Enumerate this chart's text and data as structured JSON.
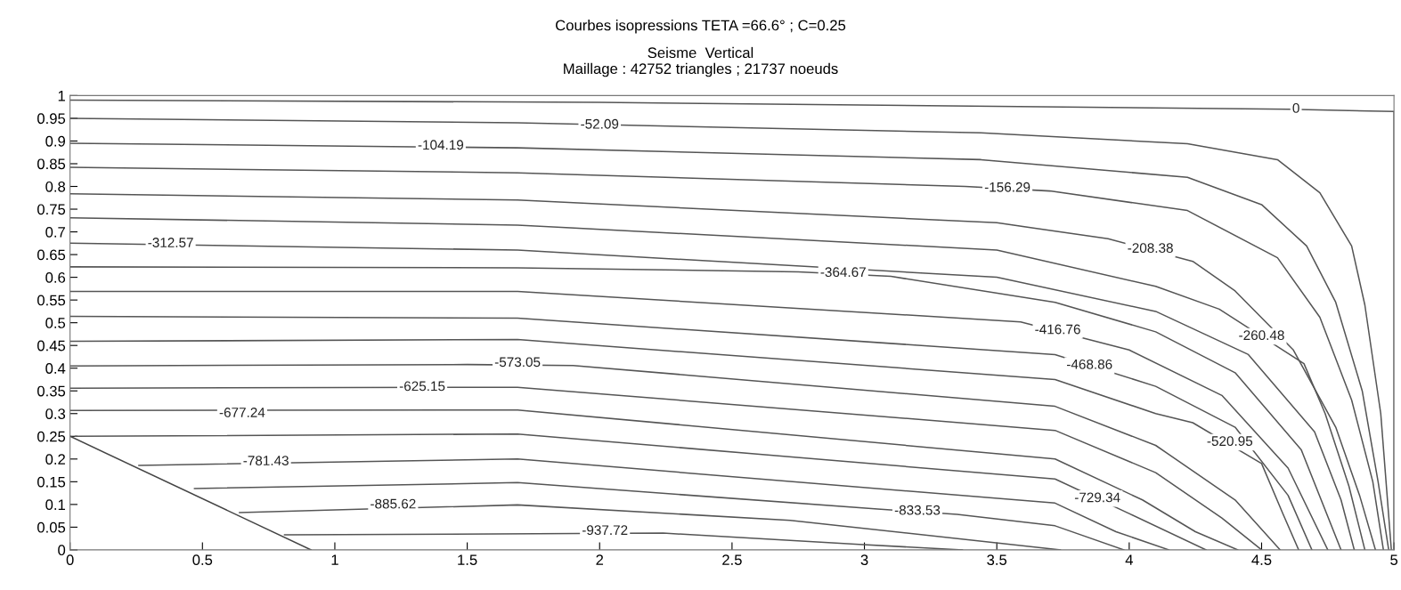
{
  "chart_data": {
    "type": "line",
    "title": "Courbes isopressions TETA =66.6° ; C=0.25",
    "subtitle": "Seisme  Vertical\nMaillage : 42752 triangles ; 21737 noeuds",
    "xlim": [
      0,
      5
    ],
    "ylim": [
      0,
      1
    ],
    "xticks": [
      0,
      0.5,
      1,
      1.5,
      2,
      2.5,
      3,
      3.5,
      4,
      4.5,
      5
    ],
    "yticks": [
      0,
      0.05,
      0.1,
      0.15,
      0.2,
      0.25,
      0.3,
      0.35,
      0.4,
      0.45,
      0.5,
      0.55,
      0.6,
      0.65,
      0.7,
      0.75,
      0.8,
      0.85,
      0.9,
      0.95,
      1
    ],
    "grid": false,
    "legend": false,
    "marker": "none",
    "line_style": "solid",
    "series": [
      {
        "color": "#555555",
        "x": [
          0,
          2,
          4.6,
          5,
          5
        ],
        "values": [
          0.99,
          0.985,
          0.97,
          0.965,
          0
        ]
      },
      {
        "color": "#555555",
        "x": [
          0,
          1.69,
          3.44,
          4.22,
          4.56,
          4.72,
          4.84,
          4.89,
          4.95,
          4.99
        ],
        "values": [
          0.95,
          0.94,
          0.918,
          0.894,
          0.859,
          0.786,
          0.669,
          0.539,
          0.3,
          0
        ]
      },
      {
        "color": "#555555",
        "x": [
          0,
          1.69,
          3.44,
          4.22,
          4.5,
          4.67,
          4.78,
          4.88,
          4.94,
          4.98
        ],
        "values": [
          0.895,
          0.885,
          0.859,
          0.82,
          0.76,
          0.669,
          0.545,
          0.35,
          0.15,
          0
        ]
      },
      {
        "color": "#555555",
        "x": [
          0,
          1.69,
          3.38,
          3.7,
          4.22,
          4.56,
          4.72,
          4.84,
          4.92,
          4.96
        ],
        "values": [
          0.842,
          0.83,
          0.8,
          0.79,
          0.747,
          0.643,
          0.512,
          0.33,
          0.15,
          0
        ]
      },
      {
        "color": "#555555",
        "x": [
          0,
          1.69,
          3.5,
          3.92,
          4.24,
          4.4,
          4.62,
          4.78,
          4.87,
          4.93
        ],
        "values": [
          0.784,
          0.77,
          0.72,
          0.685,
          0.635,
          0.57,
          0.44,
          0.27,
          0.12,
          0
        ]
      },
      {
        "color": "#555555",
        "x": [
          0,
          1.69,
          3.5,
          4.1,
          4.34,
          4.66,
          4.74,
          4.83,
          4.89
        ],
        "values": [
          0.731,
          0.715,
          0.66,
          0.58,
          0.53,
          0.41,
          0.3,
          0.14,
          0
        ]
      },
      {
        "color": "#555555",
        "x": [
          0,
          1.69,
          3.5,
          4.1,
          4.45,
          4.7,
          4.8,
          4.85
        ],
        "values": [
          0.675,
          0.66,
          0.6,
          0.525,
          0.43,
          0.26,
          0.11,
          0
        ]
      },
      {
        "color": "#555555",
        "x": [
          0,
          1.69,
          2.75,
          3.1,
          3.72,
          4.1,
          4.4,
          4.65,
          4.8
        ],
        "values": [
          0.623,
          0.621,
          0.612,
          0.602,
          0.545,
          0.48,
          0.39,
          0.22,
          0
        ]
      },
      {
        "color": "#555555",
        "x": [
          0,
          1.69,
          3.59,
          4.0,
          4.35,
          4.6,
          4.75
        ],
        "values": [
          0.569,
          0.569,
          0.502,
          0.44,
          0.34,
          0.18,
          0
        ]
      },
      {
        "color": "#555555",
        "x": [
          0,
          1.69,
          3.72,
          4.1,
          4.4,
          4.6,
          4.69
        ],
        "values": [
          0.514,
          0.51,
          0.43,
          0.36,
          0.27,
          0.12,
          0
        ]
      },
      {
        "color": "#555555",
        "x": [
          0,
          1.69,
          3.72,
          4.1,
          4.24,
          4.5,
          4.58,
          4.64
        ],
        "values": [
          0.459,
          0.463,
          0.375,
          0.3,
          0.28,
          0.19,
          0.08,
          0
        ]
      },
      {
        "color": "#555555",
        "x": [
          0,
          1.5,
          1.9,
          3.72,
          4.1,
          4.4,
          4.57
        ],
        "values": [
          0.405,
          0.408,
          0.406,
          0.316,
          0.23,
          0.11,
          0
        ]
      },
      {
        "color": "#555555",
        "x": [
          0,
          1.69,
          3.72,
          4.1,
          4.35,
          4.5
        ],
        "values": [
          0.356,
          0.358,
          0.263,
          0.17,
          0.07,
          0
        ]
      },
      {
        "color": "#555555",
        "x": [
          0,
          1.69,
          3.72,
          4.05,
          4.25,
          4.41
        ],
        "values": [
          0.307,
          0.308,
          0.2,
          0.11,
          0.04,
          0
        ]
      },
      {
        "color": "#555555",
        "x": [
          0.02,
          1.69,
          3.72,
          4.0,
          4.29
        ],
        "values": [
          0.25,
          0.255,
          0.156,
          0.08,
          0
        ]
      },
      {
        "color": "#555555",
        "x": [
          0.26,
          1.69,
          3.72,
          3.95,
          4.15
        ],
        "values": [
          0.186,
          0.2,
          0.103,
          0.04,
          0
        ]
      },
      {
        "color": "#555555",
        "x": [
          0.47,
          1.69,
          3.05,
          3.35,
          3.72,
          3.98
        ],
        "values": [
          0.135,
          0.148,
          0.09,
          0.078,
          0.053,
          0
        ]
      },
      {
        "color": "#555555",
        "x": [
          0.64,
          1.69,
          2.72,
          3.74
        ],
        "values": [
          0.082,
          0.099,
          0.065,
          0
        ]
      },
      {
        "color": "#555555",
        "x": [
          0.81,
          2.24,
          2.98,
          3.37
        ],
        "values": [
          0.033,
          0.037,
          0.012,
          0
        ]
      },
      {
        "color": "#444444",
        "x": [
          0,
          0.91
        ],
        "values": [
          0.25,
          0
        ]
      }
    ],
    "annotations": [
      {
        "text": "0",
        "x": 4.63,
        "y": 0.97
      },
      {
        "text": "-52.09",
        "x": 2.0,
        "y": 0.935
      },
      {
        "text": "-104.19",
        "x": 1.4,
        "y": 0.889
      },
      {
        "text": "-156.29",
        "x": 3.54,
        "y": 0.796
      },
      {
        "text": "-208.38",
        "x": 4.08,
        "y": 0.662
      },
      {
        "text": "-260.48",
        "x": 4.5,
        "y": 0.47
      },
      {
        "text": "-312.57",
        "x": 0.38,
        "y": 0.674
      },
      {
        "text": "-364.67",
        "x": 2.92,
        "y": 0.609
      },
      {
        "text": "-416.76",
        "x": 3.73,
        "y": 0.483
      },
      {
        "text": "-468.86",
        "x": 3.85,
        "y": 0.406
      },
      {
        "text": "-520.95",
        "x": 4.38,
        "y": 0.237
      },
      {
        "text": "-573.05",
        "x": 1.69,
        "y": 0.411
      },
      {
        "text": "-625.15",
        "x": 1.33,
        "y": 0.358
      },
      {
        "text": "-677.24",
        "x": 0.65,
        "y": 0.3
      },
      {
        "text": "-729.34",
        "x": 3.88,
        "y": 0.113
      },
      {
        "text": "-781.43",
        "x": 0.74,
        "y": 0.194
      },
      {
        "text": "-833.53",
        "x": 3.2,
        "y": 0.085
      },
      {
        "text": "-885.62",
        "x": 1.22,
        "y": 0.099
      },
      {
        "text": "-937.72",
        "x": 2.02,
        "y": 0.041
      }
    ]
  }
}
